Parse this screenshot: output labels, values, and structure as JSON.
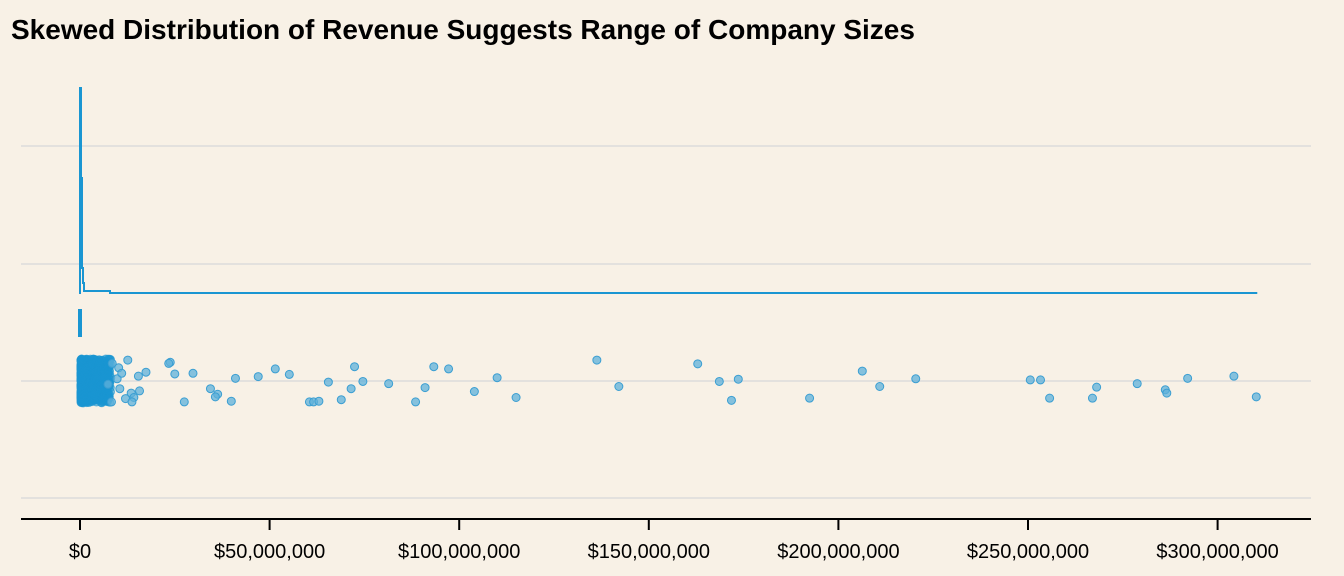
{
  "chart_data": {
    "type": "scatter",
    "title": "Skewed Distribution of Revenue Suggests Range of Company Sizes",
    "xlabel": "",
    "ylabel": "",
    "xlim": [
      -8000000,
      327000000
    ],
    "x_ticks": [
      0,
      50000000,
      100000000,
      150000000,
      200000000,
      250000000,
      300000000
    ],
    "x_tick_labels": [
      "$0",
      "$50,000,000",
      "$100,000,000",
      "$150,000,000",
      "$200,000,000",
      "$250,000,000",
      "$300,000,000"
    ],
    "grid": "horizontal",
    "colors": {
      "accent": "#1a96d2",
      "point": "#3d9fd0",
      "grid": "#dcdcdc",
      "background": "#f8f1e6",
      "axis": "#000000"
    },
    "density": {
      "description": "Kernel density of revenue (top panel), sharply peaked near $0",
      "x": [
        0,
        200000,
        400000,
        600000,
        800000,
        1000000,
        1500000,
        2000000,
        3000000,
        5000000,
        8000000,
        12000000,
        20000000,
        310000000
      ],
      "y": [
        1.0,
        0.98,
        0.6,
        0.35,
        0.12,
        0.05,
        0.03,
        0.015,
        0.01,
        0.005,
        0.004,
        0.003,
        0.001,
        0.0
      ]
    },
    "rug_marker": {
      "x": 0,
      "description": "median marker bar"
    },
    "points": [
      {
        "x": 23800000,
        "j": 0.85
      },
      {
        "x": 23400000,
        "j": 0.8
      },
      {
        "x": 25000000,
        "j": 0.32
      },
      {
        "x": 29800000,
        "j": 0.35
      },
      {
        "x": 34400000,
        "j": -0.35
      },
      {
        "x": 36300000,
        "j": -0.6
      },
      {
        "x": 35700000,
        "j": -0.72
      },
      {
        "x": 39900000,
        "j": -0.92
      },
      {
        "x": 27500000,
        "j": -0.95
      },
      {
        "x": 41000000,
        "j": 0.12
      },
      {
        "x": 47000000,
        "j": 0.2
      },
      {
        "x": 51500000,
        "j": 0.55
      },
      {
        "x": 55200000,
        "j": 0.3
      },
      {
        "x": 60500000,
        "j": -0.95
      },
      {
        "x": 61600000,
        "j": -0.95
      },
      {
        "x": 63000000,
        "j": -0.92
      },
      {
        "x": 65500000,
        "j": -0.05
      },
      {
        "x": 68900000,
        "j": -0.85
      },
      {
        "x": 71500000,
        "j": -0.35
      },
      {
        "x": 72400000,
        "j": 0.65
      },
      {
        "x": 74600000,
        "j": -0.02
      },
      {
        "x": 81400000,
        "j": -0.12
      },
      {
        "x": 88500000,
        "j": -0.95
      },
      {
        "x": 91000000,
        "j": -0.3
      },
      {
        "x": 93300000,
        "j": 0.65
      },
      {
        "x": 97200000,
        "j": 0.55
      },
      {
        "x": 104000000,
        "j": -0.48
      },
      {
        "x": 110000000,
        "j": 0.15
      },
      {
        "x": 115000000,
        "j": -0.75
      },
      {
        "x": 136300000,
        "j": 0.95
      },
      {
        "x": 142100000,
        "j": -0.25
      },
      {
        "x": 162900000,
        "j": 0.78
      },
      {
        "x": 168600000,
        "j": -0.02
      },
      {
        "x": 171800000,
        "j": -0.88
      },
      {
        "x": 173600000,
        "j": 0.08
      },
      {
        "x": 192400000,
        "j": -0.78
      },
      {
        "x": 206300000,
        "j": 0.45
      },
      {
        "x": 210900000,
        "j": -0.25
      },
      {
        "x": 220400000,
        "j": 0.1
      },
      {
        "x": 250600000,
        "j": 0.05
      },
      {
        "x": 253300000,
        "j": 0.05
      },
      {
        "x": 255700000,
        "j": -0.78
      },
      {
        "x": 267000000,
        "j": -0.78
      },
      {
        "x": 268100000,
        "j": -0.28
      },
      {
        "x": 278800000,
        "j": -0.12
      },
      {
        "x": 286200000,
        "j": -0.4
      },
      {
        "x": 286600000,
        "j": -0.55
      },
      {
        "x": 292100000,
        "j": 0.12
      },
      {
        "x": 304300000,
        "j": 0.22
      },
      {
        "x": 310200000,
        "j": -0.72
      },
      {
        "x": 8500000,
        "j": 0.8
      },
      {
        "x": 10200000,
        "j": 0.6
      },
      {
        "x": 12600000,
        "j": 0.95
      },
      {
        "x": 15400000,
        "j": 0.22
      },
      {
        "x": 17400000,
        "j": 0.4
      },
      {
        "x": 13500000,
        "j": -0.55
      },
      {
        "x": 14200000,
        "j": -0.75
      },
      {
        "x": 15700000,
        "j": -0.45
      },
      {
        "x": 12000000,
        "j": -0.8
      },
      {
        "x": 13700000,
        "j": -0.95
      },
      {
        "x": 10500000,
        "j": -0.35
      },
      {
        "x": 9800000,
        "j": 0.1
      },
      {
        "x": 8300000,
        "j": -0.95
      },
      {
        "x": 11000000,
        "j": 0.35
      },
      {
        "x": 7400000,
        "j": -0.15
      }
    ],
    "dense_cluster": {
      "x_range": [
        0,
        8000000
      ],
      "count_estimate": 900,
      "description": "Very dense cluster of points between $0 and ~$8M"
    }
  }
}
